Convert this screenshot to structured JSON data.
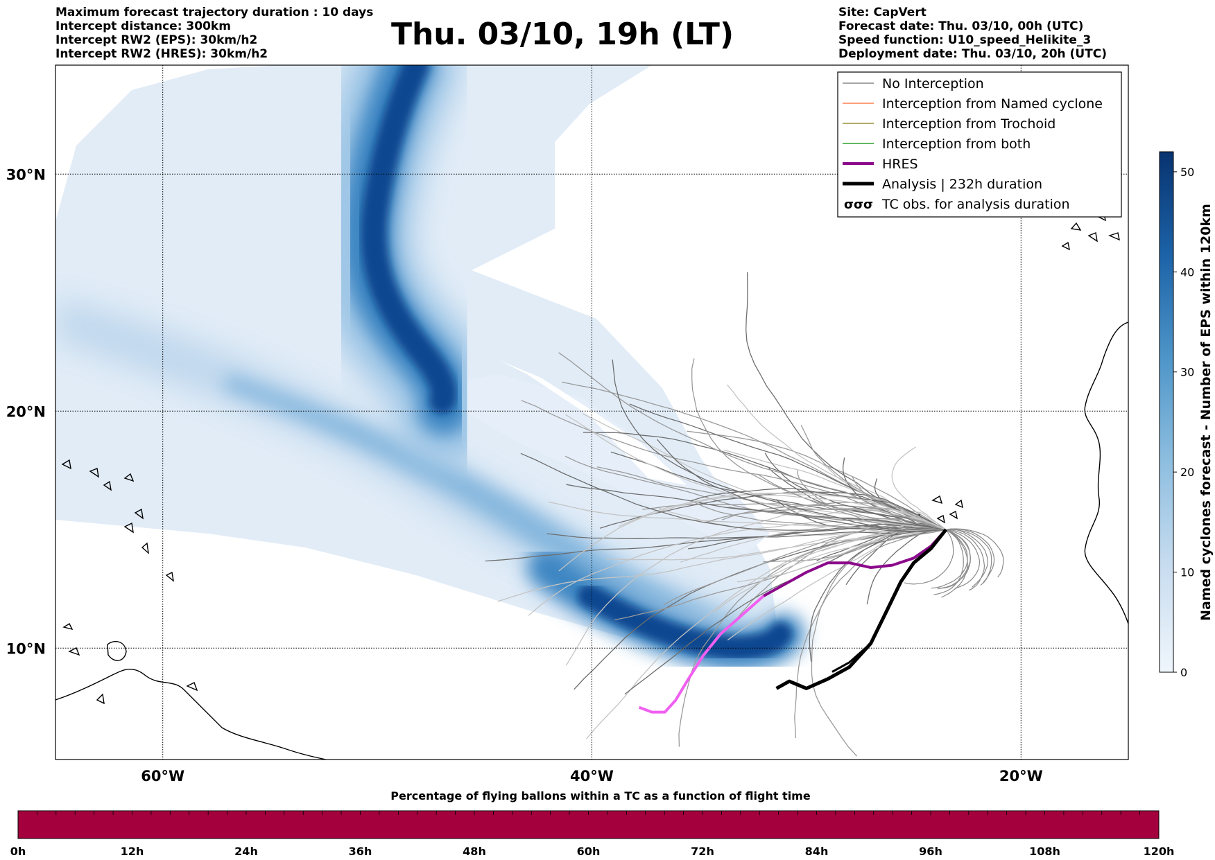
{
  "header": {
    "left_lines": [
      "Maximum forecast trajectory duration : 10 days",
      "Intercept distance: 300km",
      "Intercept RW2 (EPS):  30km/h2",
      "Intercept RW2 (HRES): 30km/h2"
    ],
    "title": "Thu. 03/10, 19h (LT)",
    "right_lines": [
      "Site: CapVert",
      "Forecast date: Thu. 03/10, 00h (UTC)",
      "Speed function: U10_speed_Helikite_3",
      "Deployment date: Thu. 03/10, 20h (UTC)"
    ]
  },
  "map": {
    "lon_range": [
      -65,
      -15
    ],
    "lat_range": [
      5.3,
      34.6
    ],
    "lon_ticks": [
      {
        "value": -60,
        "label": "60°W"
      },
      {
        "value": -40,
        "label": "40°W"
      },
      {
        "value": -20,
        "label": "20°W"
      }
    ],
    "lat_ticks": [
      {
        "value": 30,
        "label": "30°N"
      },
      {
        "value": 20,
        "label": "20°N"
      },
      {
        "value": 10,
        "label": "10°N"
      }
    ],
    "grid": true,
    "site": {
      "name": "CapVert",
      "lon": -23.5,
      "lat": 15.0
    },
    "hres_track": [
      [
        -23.5,
        15.0
      ],
      [
        -24.2,
        14.3
      ],
      [
        -25.0,
        13.8
      ],
      [
        -26.0,
        13.5
      ],
      [
        -27.0,
        13.4
      ],
      [
        -28.0,
        13.6
      ],
      [
        -29.0,
        13.6
      ],
      [
        -30.0,
        13.2
      ],
      [
        -31.0,
        12.7
      ],
      [
        -32.0,
        12.2
      ],
      [
        -33.0,
        11.4
      ],
      [
        -34.0,
        10.6
      ],
      [
        -34.8,
        9.7
      ],
      [
        -35.5,
        8.7
      ],
      [
        -36.1,
        7.8
      ],
      [
        -36.6,
        7.3
      ],
      [
        -37.2,
        7.3
      ],
      [
        -37.8,
        7.5
      ]
    ],
    "analysis_track": [
      [
        -23.5,
        15.0
      ],
      [
        -24.2,
        14.2
      ],
      [
        -25.0,
        13.6
      ],
      [
        -25.6,
        12.8
      ],
      [
        -26.3,
        11.5
      ],
      [
        -27.0,
        10.2
      ],
      [
        -28.0,
        9.2
      ],
      [
        -29.0,
        8.7
      ],
      [
        -30.0,
        8.3
      ],
      [
        -30.8,
        8.6
      ],
      [
        -31.4,
        8.3
      ]
    ],
    "analysis_tail": [
      [
        -26.3,
        11.5
      ],
      [
        -27.0,
        10.2
      ],
      [
        -28.0,
        9.4
      ],
      [
        -28.8,
        9.0
      ]
    ]
  },
  "legend": {
    "entries": [
      {
        "label": "No Interception",
        "color": "#888888",
        "style": "thin"
      },
      {
        "label": "Interception from Named cyclone",
        "color": "#ff7f50",
        "style": "thin"
      },
      {
        "label": "Interception from Trochoid",
        "color": "#9a8f3a",
        "style": "thin"
      },
      {
        "label": "Interception from both",
        "color": "#2ca02c",
        "style": "thin"
      },
      {
        "label": "HRES",
        "color": "#8b0a8b",
        "style": "thick"
      },
      {
        "label": "Analysis | 232h duration",
        "color": "#000000",
        "style": "thicker"
      },
      {
        "label": "TC obs. for analysis duration",
        "color": "#000000",
        "style": "symbol"
      }
    ]
  },
  "colorbar": {
    "label": "Named cyclones forecast - Number of EPS within 120km",
    "min": 0,
    "max": 52,
    "ticks": [
      0,
      10,
      20,
      30,
      40,
      50
    ],
    "color_low": "#f0f6fc",
    "color_high": "#083370"
  },
  "time_bar": {
    "title": "Percentage of flying ballons within a TC as a function of flight time",
    "tick_labels": [
      "0h",
      "12h",
      "24h",
      "36h",
      "48h",
      "60h",
      "72h",
      "84h",
      "96h",
      "108h",
      "120h"
    ],
    "fill_color": "#a3003d"
  }
}
